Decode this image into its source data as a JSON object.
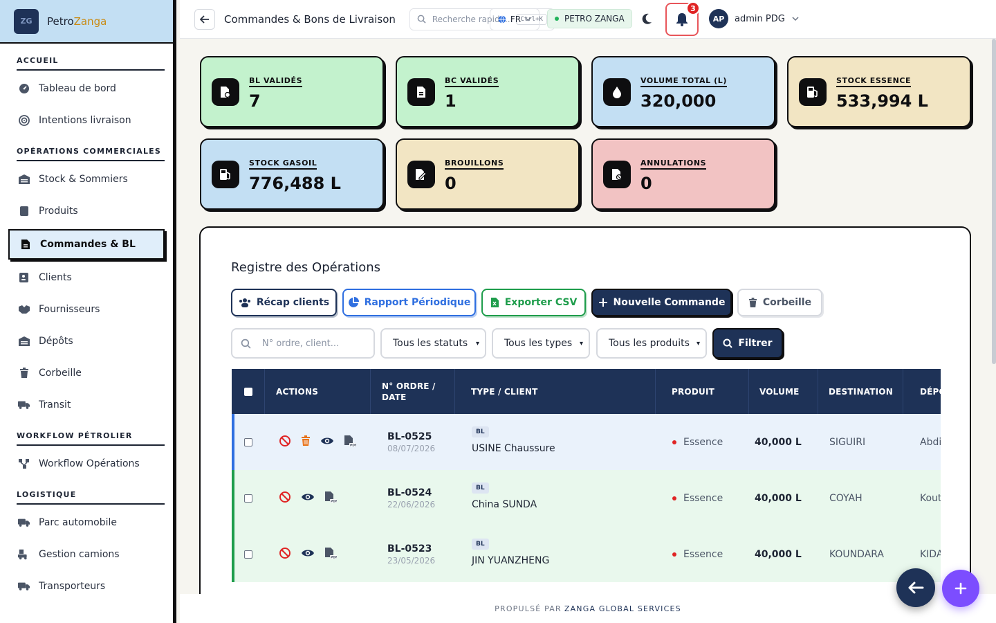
{
  "brand": {
    "logo_text": "ZG",
    "name_part1": "Petro",
    "name_part2": "Zanga"
  },
  "sidebar": {
    "sections": [
      {
        "title": "ACCUEIL",
        "items": [
          {
            "label": "Tableau de bord",
            "icon": "gauge-icon"
          },
          {
            "label": "Intentions livraison",
            "icon": "target-icon"
          }
        ]
      },
      {
        "title": "OPÉRATIONS COMMERCIALES",
        "items": [
          {
            "label": "Stock & Sommiers",
            "icon": "warehouse-icon"
          },
          {
            "label": "Produits",
            "icon": "box-icon"
          },
          {
            "label": "Commandes & BL",
            "icon": "file-icon",
            "active": true
          },
          {
            "label": "Clients",
            "icon": "contact-icon"
          },
          {
            "label": "Fournisseurs",
            "icon": "handshake-icon"
          },
          {
            "label": "Dépôts",
            "icon": "warehouse-icon"
          },
          {
            "label": "Corbeille",
            "icon": "trash-icon"
          },
          {
            "label": "Transit",
            "icon": "truck-icon"
          }
        ]
      },
      {
        "title": "WORKFLOW PÉTROLIER",
        "items": [
          {
            "label": "Workflow Opérations",
            "icon": "workflow-icon"
          }
        ]
      },
      {
        "title": "LOGISTIQUE",
        "items": [
          {
            "label": "Parc automobile",
            "icon": "truck-icon"
          },
          {
            "label": "Gestion camions",
            "icon": "truck-loading-icon"
          },
          {
            "label": "Transporteurs",
            "icon": "truck-icon"
          }
        ]
      }
    ]
  },
  "header": {
    "title": "Commandes & Bons de Livraison",
    "search_placeholder": "Recherche rapide...",
    "search_shortcut": "Ctrl+K",
    "language": "FR",
    "company": "PETRO ZANGA",
    "notification_count": "3",
    "user_initials": "AP",
    "user_name": "admin PDG"
  },
  "stats": [
    {
      "label": "BL VALIDÉS",
      "value": "7",
      "color": "#c3f2cd"
    },
    {
      "label": "BC VALIDÉS",
      "value": "1",
      "color": "#c3f2cd"
    },
    {
      "label": "VOLUME TOTAL (L)",
      "value": "320,000",
      "color": "#c3dff3"
    },
    {
      "label": "STOCK ESSENCE",
      "value": "533,994 L",
      "color": "#f2e5c3"
    },
    {
      "label": "STOCK GASOIL",
      "value": "776,488 L",
      "color": "#c3dff3"
    },
    {
      "label": "BROUILLONS",
      "value": "0",
      "color": "#f2e5c3"
    },
    {
      "label": "ANNULATIONS",
      "value": "0",
      "color": "#f2c3c3"
    }
  ],
  "registry": {
    "title": "Registre des Opérations",
    "buttons": {
      "recap": "Récap clients",
      "rapport": "Rapport Périodique",
      "export": "Exporter CSV",
      "new": "Nouvelle Commande",
      "trash": "Corbeille"
    },
    "filters": {
      "search_placeholder": "N° ordre, client...",
      "status": "Tous les statuts",
      "type": "Tous les types",
      "product": "Tous les produits",
      "submit": "Filtrer"
    },
    "columns": [
      "ACTIONS",
      "N° ORDRE / DATE",
      "TYPE / CLIENT",
      "PRODUIT",
      "VOLUME",
      "DESTINATION",
      "DÉPÔT"
    ],
    "column_line1": "N° ORDRE /",
    "column_line2": "DATE",
    "rows": [
      {
        "order": "BL-0525",
        "date": "08/07/2026",
        "type": "BL",
        "client": "USINE Chaussure",
        "product": "Essence",
        "volume": "40,000 L",
        "destination": "SIGUIRI",
        "depot": "Abdi",
        "can_delete": true
      },
      {
        "order": "BL-0524",
        "date": "22/06/2026",
        "type": "BL",
        "client": "China SUNDA",
        "product": "Essence",
        "volume": "40,000 L",
        "destination": "COYAH",
        "depot": "Kout",
        "can_delete": false
      },
      {
        "order": "BL-0523",
        "date": "23/05/2026",
        "type": "BL",
        "client": "JIN YUANZHENG",
        "product": "Essence",
        "volume": "40,000 L",
        "destination": "KOUNDARA",
        "depot": "KIDA",
        "can_delete": false
      }
    ]
  },
  "footer": {
    "prefix": "PROPULSÉ PAR",
    "company": "ZANGA GLOBAL SERVICES"
  }
}
